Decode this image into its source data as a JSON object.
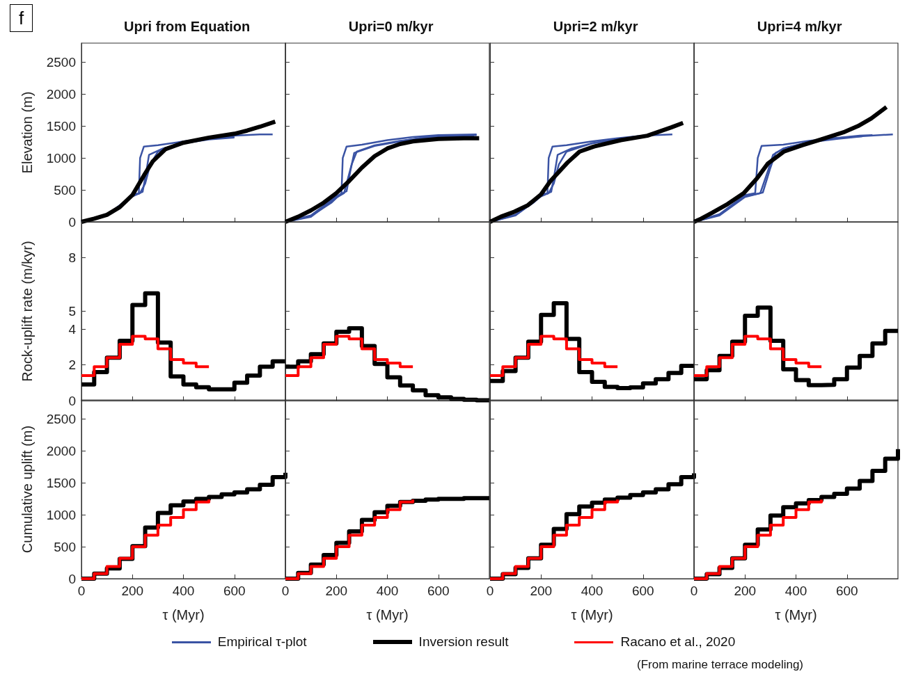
{
  "chart_data": [
    {
      "type": "line",
      "title": "Upri from Equation",
      "ylabel": "Elevation (m)",
      "xlim": [
        0,
        800
      ],
      "xticks": [
        0,
        200,
        400,
        600
      ],
      "ylim": [
        0,
        2800
      ],
      "yticks": [
        0,
        500,
        1000,
        1500,
        2000,
        2500
      ],
      "tick_labels": "y",
      "legend": "bottom",
      "annotations": [
        "f"
      ],
      "series": [
        {
          "name": "Empirical τ-plot",
          "color": "#3a53a4",
          "x": [
            0,
            100,
            170,
            210,
            225,
            230,
            245,
            300,
            400,
            500,
            600,
            700,
            750
          ],
          "values": [
            0,
            110,
            300,
            440,
            440,
            1000,
            1180,
            1200,
            1260,
            1310,
            1350,
            1370,
            1370
          ]
        },
        {
          "color": "#3a53a4",
          "x": [
            0,
            100,
            200,
            230,
            250,
            270,
            300,
            400,
            500,
            600
          ],
          "values": [
            0,
            100,
            400,
            450,
            600,
            900,
            1100,
            1230,
            1300,
            1330
          ]
        },
        {
          "color": "#3a53a4",
          "x": [
            0,
            100,
            200,
            240,
            255,
            265,
            320,
            400,
            500,
            600
          ],
          "values": [
            0,
            110,
            410,
            470,
            800,
            1050,
            1150,
            1230,
            1290,
            1320
          ]
        },
        {
          "name": "Inversion result",
          "color": "#000000",
          "x": [
            0,
            50,
            100,
            150,
            200,
            250,
            280,
            330,
            400,
            500,
            600,
            650,
            700,
            760
          ],
          "values": [
            0,
            50,
            110,
            230,
            420,
            760,
            950,
            1140,
            1240,
            1320,
            1380,
            1430,
            1490,
            1570
          ]
        }
      ]
    },
    {
      "type": "line",
      "title": "Upri=0 m/kyr",
      "xlim": [
        0,
        800
      ],
      "xticks": [
        0,
        200,
        400,
        600
      ],
      "ylim": [
        0,
        2800
      ],
      "yticks": [
        0,
        500,
        1000,
        1500,
        2000,
        2500
      ],
      "tick_labels": false,
      "legend": "bottom",
      "series": [
        {
          "name": "Empirical τ-plot",
          "color": "#3a53a4",
          "x": [
            0,
            100,
            180,
            220,
            225,
            240,
            300,
            400,
            500,
            600,
            750
          ],
          "values": [
            0,
            90,
            300,
            450,
            1000,
            1180,
            1210,
            1280,
            1330,
            1360,
            1370
          ]
        },
        {
          "color": "#3a53a4",
          "x": [
            0,
            100,
            200,
            230,
            260,
            280,
            350,
            450,
            600,
            750
          ],
          "values": [
            0,
            80,
            380,
            450,
            900,
            1100,
            1200,
            1270,
            1340,
            1360
          ]
        },
        {
          "color": "#3a53a4",
          "x": [
            0,
            100,
            200,
            240,
            255,
            270,
            350,
            450,
            550,
            740
          ],
          "values": [
            0,
            100,
            400,
            480,
            800,
            1080,
            1190,
            1260,
            1330,
            1350
          ]
        },
        {
          "name": "Inversion result",
          "color": "#000000",
          "x": [
            0,
            50,
            100,
            150,
            200,
            250,
            300,
            350,
            400,
            450,
            500,
            600,
            700,
            760
          ],
          "values": [
            0,
            80,
            180,
            300,
            450,
            640,
            850,
            1030,
            1150,
            1220,
            1260,
            1300,
            1310,
            1310
          ]
        }
      ]
    },
    {
      "type": "line",
      "title": "Upri=2 m/kyr",
      "xlim": [
        0,
        800
      ],
      "xticks": [
        0,
        200,
        400,
        600
      ],
      "ylim": [
        0,
        2800
      ],
      "yticks": [
        0,
        500,
        1000,
        1500,
        2000,
        2500
      ],
      "tick_labels": false,
      "legend": "bottom",
      "series": [
        {
          "name": "Empirical τ-plot",
          "color": "#3a53a4",
          "x": [
            0,
            100,
            170,
            210,
            225,
            230,
            245,
            300,
            400,
            500,
            600,
            715
          ],
          "values": [
            0,
            110,
            300,
            440,
            440,
            1000,
            1180,
            1200,
            1260,
            1310,
            1350,
            1370
          ]
        },
        {
          "color": "#3a53a4",
          "x": [
            0,
            100,
            200,
            230,
            250,
            270,
            300,
            400,
            500,
            580
          ],
          "values": [
            0,
            100,
            400,
            450,
            600,
            900,
            1100,
            1230,
            1300,
            1340
          ]
        },
        {
          "color": "#3a53a4",
          "x": [
            0,
            100,
            200,
            240,
            255,
            265,
            320,
            400,
            500,
            560
          ],
          "values": [
            0,
            110,
            410,
            470,
            800,
            1050,
            1150,
            1230,
            1290,
            1320
          ]
        },
        {
          "name": "Inversion result",
          "color": "#000000",
          "x": [
            0,
            42,
            96,
            148,
            200,
            237,
            304,
            351,
            408,
            513,
            617,
            711,
            757
          ],
          "values": [
            0,
            80,
            160,
            260,
            430,
            640,
            930,
            1100,
            1180,
            1280,
            1350,
            1480,
            1550
          ]
        }
      ]
    },
    {
      "type": "line",
      "title": "Upri=4 m/kyr",
      "xlim": [
        0,
        800
      ],
      "xticks": [
        0,
        200,
        400,
        600
      ],
      "ylim": [
        0,
        2800
      ],
      "yticks": [
        0,
        500,
        1000,
        1500,
        2000,
        2500
      ],
      "tick_labels": false,
      "legend": "bottom",
      "series": [
        {
          "name": "Empirical τ-plot",
          "color": "#3a53a4",
          "x": [
            0,
            100,
            200,
            240,
            250,
            265,
            350,
            450,
            550,
            650,
            780
          ],
          "values": [
            0,
            120,
            420,
            450,
            1000,
            1190,
            1210,
            1270,
            1310,
            1340,
            1370
          ]
        },
        {
          "color": "#3a53a4",
          "x": [
            0,
            100,
            200,
            260,
            290,
            310,
            350,
            450,
            550,
            650,
            700
          ],
          "values": [
            0,
            110,
            400,
            450,
            800,
            1050,
            1150,
            1250,
            1310,
            1350,
            1360
          ]
        },
        {
          "color": "#3a53a4",
          "x": [
            0,
            100,
            200,
            270,
            300,
            320,
            360,
            460,
            560,
            660
          ],
          "values": [
            0,
            100,
            390,
            460,
            850,
            1080,
            1160,
            1250,
            1300,
            1340
          ]
        },
        {
          "name": "Inversion result",
          "color": "#000000",
          "x": [
            0,
            28,
            70,
            132,
            195,
            247,
            289,
            352,
            424,
            497,
            591,
            643,
            695,
            755
          ],
          "values": [
            0,
            50,
            140,
            280,
            450,
            680,
            910,
            1100,
            1200,
            1290,
            1410,
            1500,
            1620,
            1800
          ]
        }
      ]
    },
    {
      "type": "step",
      "ylabel": "Rock-uplift rate (m/kyr)",
      "xlim": [
        0,
        800
      ],
      "xticks": [
        0,
        200,
        400,
        600
      ],
      "ylim": [
        0,
        10
      ],
      "yticks": [
        0,
        2,
        4,
        5,
        8
      ],
      "tick_labels": "y",
      "legend": "bottom",
      "series": [
        {
          "name": "Inversion result",
          "color": "#000000",
          "x": [
            0,
            50,
            100,
            150,
            200,
            250,
            300,
            350,
            400,
            450,
            500,
            550,
            600,
            650,
            700,
            750,
            800
          ],
          "values": [
            0.9,
            1.6,
            2.4,
            3.35,
            5.35,
            6.0,
            3.25,
            1.35,
            0.9,
            0.75,
            0.63,
            0.63,
            1.0,
            1.4,
            1.9,
            2.2,
            2.2
          ]
        },
        {
          "name": "Racano et al., 2020",
          "color": "#ff0000",
          "x": [
            0,
            50,
            100,
            150,
            200,
            250,
            300,
            350,
            400,
            450,
            500
          ],
          "values": [
            1.4,
            1.9,
            2.4,
            3.15,
            3.6,
            3.45,
            2.9,
            2.3,
            2.1,
            1.9,
            1.9
          ]
        }
      ]
    },
    {
      "type": "step",
      "xlim": [
        0,
        800
      ],
      "xticks": [
        0,
        200,
        400,
        600
      ],
      "ylim": [
        0,
        10
      ],
      "yticks": [
        0,
        2,
        4,
        5,
        8
      ],
      "tick_labels": false,
      "legend": "bottom",
      "series": [
        {
          "name": "Inversion result",
          "color": "#000000",
          "x": [
            0,
            50,
            100,
            150,
            200,
            250,
            300,
            350,
            400,
            450,
            500,
            550,
            600,
            650,
            700,
            750,
            800
          ],
          "values": [
            1.9,
            2.2,
            2.6,
            3.2,
            3.85,
            4.05,
            3.05,
            2.05,
            1.3,
            0.85,
            0.57,
            0.3,
            0.18,
            0.1,
            0.05,
            0.02,
            0.02
          ]
        },
        {
          "name": "Racano et al., 2020",
          "color": "#ff0000",
          "x": [
            0,
            50,
            100,
            150,
            200,
            250,
            300,
            350,
            400,
            450,
            500
          ],
          "values": [
            1.4,
            1.9,
            2.4,
            3.15,
            3.6,
            3.45,
            2.9,
            2.3,
            2.1,
            1.9,
            1.9
          ]
        }
      ]
    },
    {
      "type": "step",
      "xlim": [
        0,
        800
      ],
      "xticks": [
        0,
        200,
        400,
        600
      ],
      "ylim": [
        0,
        10
      ],
      "yticks": [
        0,
        2,
        4,
        5,
        8
      ],
      "tick_labels": false,
      "legend": "bottom",
      "series": [
        {
          "name": "Inversion result",
          "color": "#000000",
          "x": [
            0,
            50,
            100,
            150,
            200,
            250,
            300,
            350,
            400,
            450,
            500,
            550,
            600,
            650,
            700,
            750,
            800
          ],
          "values": [
            1.1,
            1.65,
            2.4,
            3.3,
            4.8,
            5.45,
            3.45,
            1.6,
            1.05,
            0.77,
            0.7,
            0.74,
            0.96,
            1.2,
            1.55,
            1.95,
            1.95
          ]
        },
        {
          "name": "Racano et al., 2020",
          "color": "#ff0000",
          "x": [
            0,
            50,
            100,
            150,
            200,
            250,
            300,
            350,
            400,
            450,
            500
          ],
          "values": [
            1.4,
            1.9,
            2.4,
            3.15,
            3.6,
            3.45,
            2.9,
            2.3,
            2.1,
            1.9,
            1.9
          ]
        }
      ]
    },
    {
      "type": "step",
      "xlim": [
        0,
        800
      ],
      "xticks": [
        0,
        200,
        400,
        600
      ],
      "ylim": [
        0,
        10
      ],
      "yticks": [
        0,
        2,
        4,
        5,
        8
      ],
      "tick_labels": false,
      "legend": "bottom",
      "series": [
        {
          "name": "Inversion result",
          "color": "#000000",
          "x": [
            0,
            50,
            100,
            150,
            200,
            250,
            300,
            350,
            400,
            450,
            500,
            550,
            600,
            650,
            700,
            750,
            800
          ],
          "values": [
            1.2,
            1.7,
            2.5,
            3.3,
            4.75,
            5.2,
            3.35,
            1.75,
            1.15,
            0.87,
            0.89,
            1.2,
            1.85,
            2.5,
            3.2,
            3.9,
            3.9
          ]
        },
        {
          "name": "Racano et al., 2020",
          "color": "#ff0000",
          "x": [
            0,
            50,
            100,
            150,
            200,
            250,
            300,
            350,
            400,
            450,
            500
          ],
          "values": [
            1.4,
            1.9,
            2.4,
            3.15,
            3.6,
            3.45,
            2.9,
            2.3,
            2.1,
            1.9,
            1.9
          ]
        }
      ]
    },
    {
      "type": "step",
      "xlabel": "τ (Myr)",
      "ylabel": "Cumulative uplift (m)",
      "xlim": [
        0,
        800
      ],
      "xticks": [
        0,
        200,
        400,
        600
      ],
      "ylim": [
        0,
        2800
      ],
      "yticks": [
        0,
        500,
        1000,
        1500,
        2000,
        2500
      ],
      "legend": "bottom",
      "series": [
        {
          "name": "Inversion result",
          "color": "#000000",
          "x": [
            0,
            50,
            100,
            150,
            200,
            250,
            300,
            350,
            400,
            450,
            500,
            550,
            600,
            650,
            700,
            750,
            800
          ],
          "values": [
            0,
            80,
            160,
            310,
            510,
            800,
            1030,
            1150,
            1210,
            1250,
            1280,
            1320,
            1350,
            1400,
            1470,
            1590,
            1660
          ]
        },
        {
          "name": "Racano et al., 2020",
          "color": "#ff0000",
          "x": [
            0,
            50,
            100,
            150,
            200,
            250,
            300,
            350,
            400,
            450,
            500
          ],
          "values": [
            0,
            80,
            190,
            320,
            500,
            680,
            840,
            960,
            1080,
            1200,
            1240
          ]
        }
      ]
    },
    {
      "type": "step",
      "xlabel": "τ (Myr)",
      "xlim": [
        0,
        800
      ],
      "xticks": [
        0,
        200,
        400,
        600
      ],
      "ylim": [
        0,
        2800
      ],
      "yticks": [
        0,
        500,
        1000,
        1500,
        2000,
        2500
      ],
      "tick_labels": "x",
      "legend": "bottom",
      "series": [
        {
          "name": "Inversion result",
          "color": "#000000",
          "x": [
            0,
            50,
            100,
            150,
            200,
            250,
            300,
            350,
            400,
            450,
            500,
            550,
            600,
            650,
            700,
            750,
            800
          ],
          "values": [
            0,
            90,
            220,
            370,
            560,
            740,
            920,
            1040,
            1140,
            1200,
            1220,
            1240,
            1250,
            1250,
            1260,
            1260,
            1260
          ]
        },
        {
          "name": "Racano et al., 2020",
          "color": "#ff0000",
          "x": [
            0,
            50,
            100,
            150,
            200,
            250,
            300,
            350,
            400,
            450,
            500
          ],
          "values": [
            0,
            80,
            190,
            320,
            500,
            680,
            840,
            960,
            1080,
            1200,
            1240
          ]
        }
      ]
    },
    {
      "type": "step",
      "xlabel": "τ (Myr)",
      "xlim": [
        0,
        800
      ],
      "xticks": [
        0,
        200,
        400,
        600
      ],
      "ylim": [
        0,
        2800
      ],
      "yticks": [
        0,
        500,
        1000,
        1500,
        2000,
        2500
      ],
      "tick_labels": "x",
      "legend": "bottom",
      "series": [
        {
          "name": "Inversion result",
          "color": "#000000",
          "x": [
            0,
            50,
            100,
            150,
            200,
            250,
            300,
            350,
            400,
            450,
            500,
            550,
            600,
            650,
            700,
            750,
            800
          ],
          "values": [
            0,
            70,
            170,
            320,
            530,
            780,
            1010,
            1130,
            1190,
            1240,
            1270,
            1310,
            1350,
            1400,
            1480,
            1590,
            1650
          ]
        },
        {
          "name": "Racano et al., 2020",
          "color": "#ff0000",
          "x": [
            0,
            50,
            100,
            150,
            200,
            250,
            300,
            350,
            400,
            450,
            500
          ],
          "values": [
            0,
            80,
            190,
            320,
            500,
            680,
            840,
            960,
            1080,
            1200,
            1240
          ]
        }
      ]
    },
    {
      "type": "step",
      "xlabel": "τ (Myr)",
      "xlim": [
        0,
        800
      ],
      "xticks": [
        0,
        200,
        400,
        600
      ],
      "ylim": [
        0,
        2800
      ],
      "yticks": [
        0,
        500,
        1000,
        1500,
        2000,
        2500
      ],
      "tick_labels": "x",
      "legend": "bottom",
      "annotations": [
        "(From marine terrace modeling)"
      ],
      "series": [
        {
          "name": "Inversion result",
          "color": "#000000",
          "x": [
            0,
            50,
            100,
            150,
            200,
            250,
            300,
            350,
            400,
            450,
            500,
            550,
            600,
            650,
            700,
            750,
            800
          ],
          "values": [
            0,
            70,
            170,
            320,
            530,
            770,
            990,
            1120,
            1180,
            1230,
            1280,
            1330,
            1410,
            1530,
            1690,
            1880,
            2030
          ]
        },
        {
          "name": "Racano et al., 2020",
          "color": "#ff0000",
          "x": [
            0,
            50,
            100,
            150,
            200,
            250,
            300,
            350,
            400,
            450,
            500
          ],
          "values": [
            0,
            80,
            190,
            320,
            500,
            680,
            840,
            960,
            1080,
            1200,
            1240
          ]
        }
      ]
    }
  ]
}
